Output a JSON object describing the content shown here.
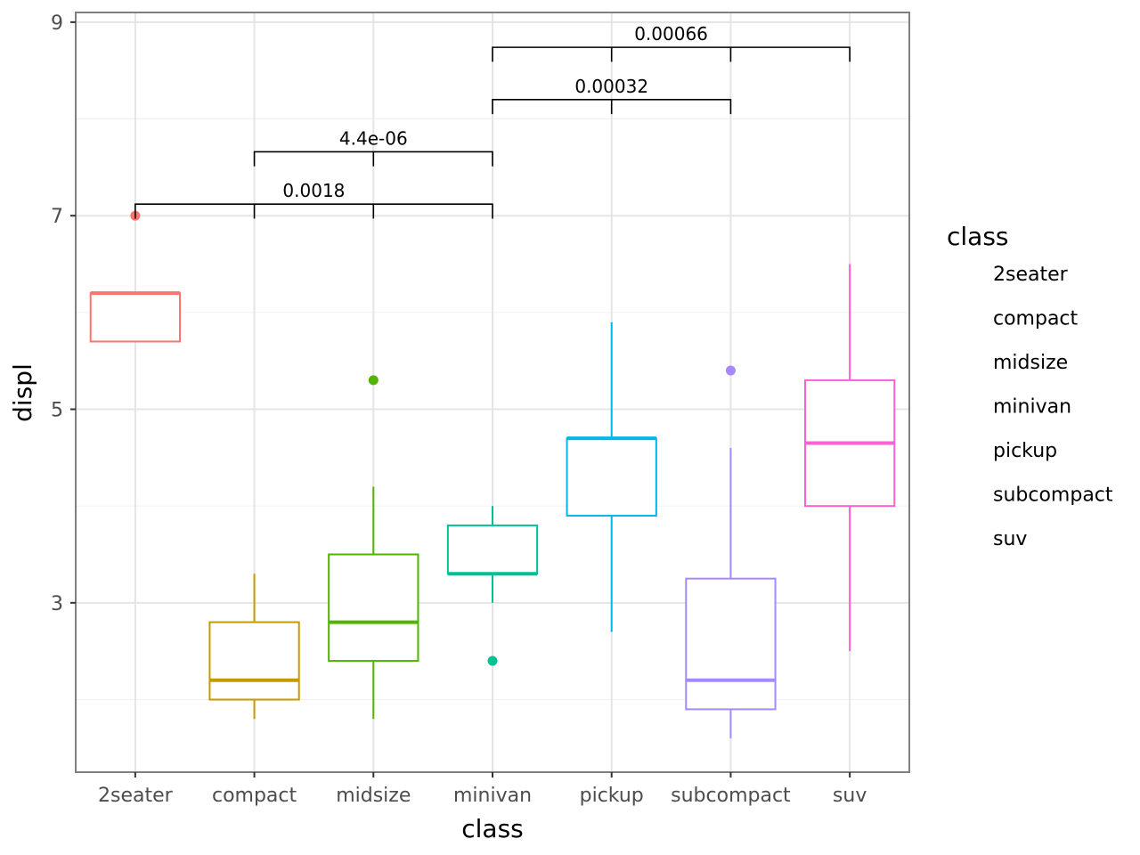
{
  "chart_data": {
    "type": "boxplot",
    "xlabel": "class",
    "ylabel": "displ",
    "ylim": [
      1.25,
      9.1
    ],
    "y_ticks": [
      3,
      5,
      7,
      9
    ],
    "categories": [
      "2seater",
      "compact",
      "midsize",
      "minivan",
      "pickup",
      "subcompact",
      "suv"
    ],
    "colors": [
      "#F8766D",
      "#C49A00",
      "#53B400",
      "#00C094",
      "#00B6EB",
      "#A58AFF",
      "#FB61D7"
    ],
    "boxes": [
      {
        "category": "2seater",
        "whisker_low": 5.7,
        "q1": 5.7,
        "median": 6.2,
        "q3": 6.2,
        "whisker_high": 6.2,
        "outliers": [
          7.0
        ]
      },
      {
        "category": "compact",
        "whisker_low": 1.8,
        "q1": 2.0,
        "median": 2.2,
        "q3": 2.8,
        "whisker_high": 3.3,
        "outliers": []
      },
      {
        "category": "midsize",
        "whisker_low": 1.8,
        "q1": 2.4,
        "median": 2.8,
        "q3": 3.5,
        "whisker_high": 4.2,
        "outliers": [
          5.3
        ]
      },
      {
        "category": "minivan",
        "whisker_low": 3.0,
        "q1": 3.3,
        "median": 3.3,
        "q3": 3.8,
        "whisker_high": 4.0,
        "outliers": [
          2.4
        ]
      },
      {
        "category": "pickup",
        "whisker_low": 2.7,
        "q1": 3.9,
        "median": 4.7,
        "q3": 4.7,
        "whisker_high": 5.9,
        "outliers": []
      },
      {
        "category": "subcompact",
        "whisker_low": 1.6,
        "q1": 1.9,
        "median": 2.2,
        "q3": 3.25,
        "whisker_high": 4.6,
        "outliers": [
          5.4
        ]
      },
      {
        "category": "suv",
        "whisker_low": 2.5,
        "q1": 4.0,
        "median": 4.65,
        "q3": 5.3,
        "whisker_high": 6.5,
        "outliers": []
      }
    ],
    "brackets": [
      {
        "from": "2seater",
        "to": "minivan",
        "label": "0.0018",
        "y": 7.12
      },
      {
        "from": "compact",
        "to": "minivan",
        "label": "4.4e-06",
        "y": 7.66
      },
      {
        "from": "minivan",
        "to": "subcompact",
        "label": "0.00032",
        "y": 8.2
      },
      {
        "from": "minivan",
        "to": "suv",
        "label": "0.00066",
        "y": 8.74
      }
    ],
    "bracket_tip_length": 0.15,
    "legend": {
      "title": "class",
      "position": "right",
      "entries": [
        "2seater",
        "compact",
        "midsize",
        "minivan",
        "pickup",
        "subcompact",
        "suv"
      ]
    }
  }
}
